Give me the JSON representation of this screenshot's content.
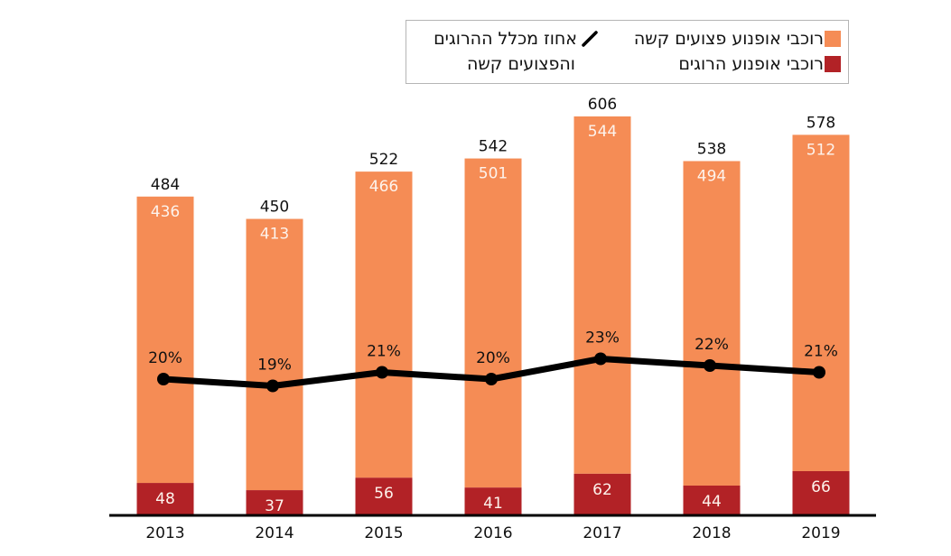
{
  "chart_data": {
    "type": "bar",
    "stacked": true,
    "title": "",
    "xlabel": "",
    "ylabel": "",
    "categories": [
      "2013",
      "2014",
      "2015",
      "2016",
      "2017",
      "2018",
      "2019"
    ],
    "series": [
      {
        "name": "רוכבי אופנוע הרוגים",
        "kind": "bar",
        "color": "#b22226",
        "values": [
          48,
          37,
          56,
          41,
          62,
          44,
          66
        ]
      },
      {
        "name": "רוכבי אופנוע פצועים קשה",
        "kind": "bar",
        "color": "#f58c55",
        "values": [
          436,
          413,
          466,
          501,
          544,
          494,
          512
        ]
      },
      {
        "name": "אחוז מכלל ההרוגים והפצועים קשה",
        "kind": "line",
        "color": "#000000",
        "values": [
          20,
          19,
          21,
          20,
          23,
          22,
          21
        ],
        "labels": [
          "20%",
          "19%",
          "21%",
          "20%",
          "23%",
          "22%",
          "21%"
        ]
      }
    ],
    "totals": [
      484,
      450,
      522,
      542,
      606,
      538,
      578
    ],
    "ylim": [
      0,
      620
    ],
    "grid": false,
    "legend_position": "top-right",
    "legend": [
      {
        "label": "רוכבי אופנוע פצועים קשה",
        "icon": "square",
        "color": "#f58c55"
      },
      {
        "label": "רוכבי אופנוע הרוגים",
        "icon": "square",
        "color": "#b22226"
      },
      {
        "label_line1": "אחוז מכלל ההרוגים",
        "label_line2": "והפצועים קשה",
        "icon": "line",
        "color": "#000000"
      }
    ]
  }
}
